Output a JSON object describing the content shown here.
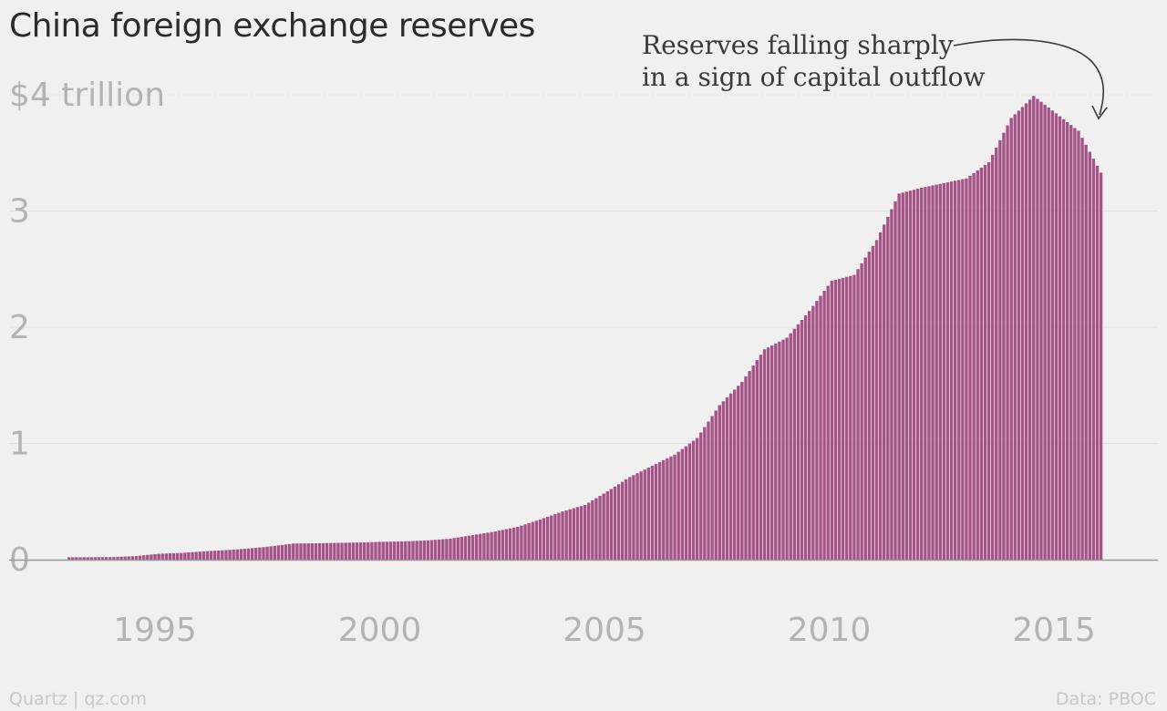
{
  "chart_data": {
    "type": "bar",
    "title": "China foreign exchange reserves",
    "ylabel": "",
    "xlabel": "",
    "unit": "$ trillion",
    "ylim": [
      0,
      4
    ],
    "xlim": [
      1991,
      2017
    ],
    "y_ticks": [
      {
        "value": 0,
        "label": "0"
      },
      {
        "value": 1,
        "label": "1"
      },
      {
        "value": 2,
        "label": "2"
      },
      {
        "value": 3,
        "label": "3"
      },
      {
        "value": 4,
        "label": "$4 trillion"
      }
    ],
    "x_ticks": [
      {
        "value": 1995,
        "label": "1995"
      },
      {
        "value": 2000,
        "label": "2000"
      },
      {
        "value": 2005,
        "label": "2005"
      },
      {
        "value": 2010,
        "label": "2010"
      },
      {
        "value": 2015,
        "label": "2015"
      }
    ],
    "grid": true,
    "bar_color": "#a45387",
    "annotation": {
      "line1": "Reserves falling sharply",
      "line2": "in a sign of capital outflow"
    },
    "points": [
      [
        1993.0,
        0.021
      ],
      [
        1993.5,
        0.021
      ],
      [
        1994.0,
        0.023
      ],
      [
        1994.5,
        0.031
      ],
      [
        1995.0,
        0.051
      ],
      [
        1995.5,
        0.058
      ],
      [
        1996.0,
        0.072
      ],
      [
        1996.5,
        0.082
      ],
      [
        1997.0,
        0.096
      ],
      [
        1997.5,
        0.115
      ],
      [
        1998.0,
        0.139
      ],
      [
        1998.5,
        0.141
      ],
      [
        1999.0,
        0.145
      ],
      [
        1999.5,
        0.148
      ],
      [
        2000.0,
        0.154
      ],
      [
        2000.5,
        0.158
      ],
      [
        2001.0,
        0.166
      ],
      [
        2001.5,
        0.181
      ],
      [
        2002.0,
        0.212
      ],
      [
        2002.5,
        0.243
      ],
      [
        2003.0,
        0.283
      ],
      [
        2003.5,
        0.346
      ],
      [
        2004.0,
        0.415
      ],
      [
        2004.5,
        0.471
      ],
      [
        2005.0,
        0.588
      ],
      [
        2005.5,
        0.711
      ],
      [
        2006.0,
        0.808
      ],
      [
        2006.5,
        0.904
      ],
      [
        2007.0,
        1.047
      ],
      [
        2007.5,
        1.33
      ],
      [
        2008.0,
        1.53
      ],
      [
        2008.5,
        1.81
      ],
      [
        2009.0,
        1.91
      ],
      [
        2009.5,
        2.14
      ],
      [
        2010.0,
        2.4
      ],
      [
        2010.5,
        2.45
      ],
      [
        2011.0,
        2.75
      ],
      [
        2011.5,
        3.15
      ],
      [
        2012.0,
        3.2
      ],
      [
        2012.5,
        3.24
      ],
      [
        2013.0,
        3.28
      ],
      [
        2013.5,
        3.42
      ],
      [
        2014.0,
        3.8
      ],
      [
        2014.5,
        3.99
      ],
      [
        2015.0,
        3.84
      ],
      [
        2015.5,
        3.69
      ],
      [
        2016.0,
        3.33
      ]
    ]
  },
  "footer": {
    "source_left": "Quartz | qz.com",
    "source_right": "Data: PBOC"
  }
}
